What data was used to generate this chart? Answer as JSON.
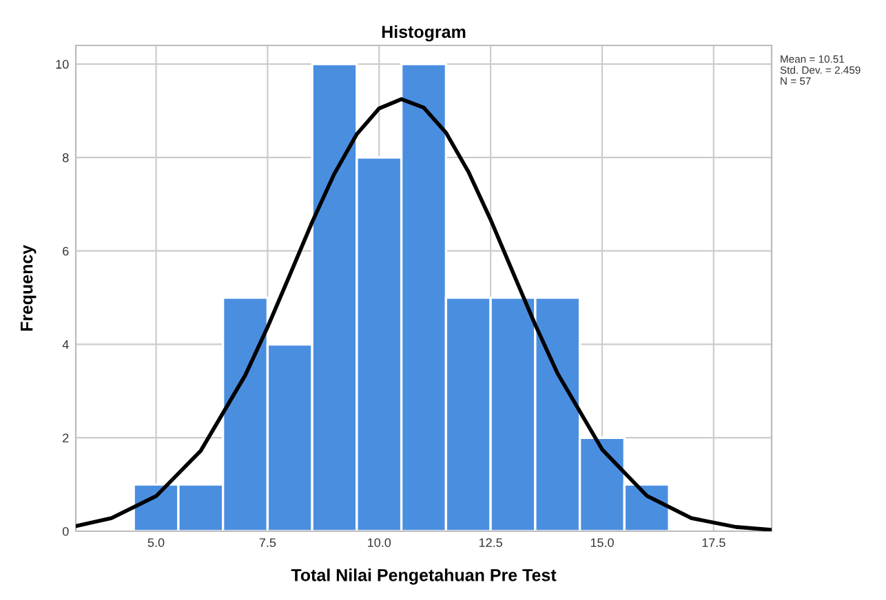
{
  "chart_data": {
    "type": "histogram",
    "title": "Histogram",
    "xlabel": "Total Nilai Pengetahuan Pre Test",
    "ylabel": "Frequency",
    "bins": [
      4.5,
      5.5,
      6.5,
      7.5,
      8.5,
      9.5,
      10.5,
      11.5,
      12.5,
      13.5,
      14.5,
      15.5,
      16.5
    ],
    "values": [
      1,
      1,
      5,
      4,
      10,
      8,
      10,
      5,
      5,
      5,
      2,
      1
    ],
    "color": "#4a8ee0",
    "series": [
      {
        "type": "line",
        "color": "#000000",
        "x": [
          3.2,
          4,
          5,
          6,
          7,
          7.5,
          8,
          8.5,
          9,
          9.5,
          10,
          10.5,
          11,
          11.5,
          12,
          12.5,
          13,
          13.5,
          14,
          15,
          16,
          17,
          18,
          18.8
        ],
        "values": [
          0.11,
          0.28,
          0.75,
          1.72,
          3.34,
          4.37,
          5.49,
          6.62,
          7.66,
          8.5,
          9.05,
          9.25,
          9.07,
          8.53,
          7.7,
          6.67,
          5.54,
          4.42,
          3.38,
          1.75,
          0.76,
          0.28,
          0.09,
          0.03
        ]
      }
    ],
    "xlim": [
      3.2,
      18.8
    ],
    "xticks": [
      {
        "value": 5,
        "label": "5.0"
      },
      {
        "value": 7.5,
        "label": "7.5"
      },
      {
        "value": 10,
        "label": "10.0"
      },
      {
        "value": 12.5,
        "label": "12.5"
      },
      {
        "value": 15,
        "label": "15.0"
      },
      {
        "value": 17.5,
        "label": "17.5"
      }
    ],
    "ylim": [
      0,
      10.4
    ],
    "yticks": [
      0,
      2,
      4,
      6,
      8,
      10
    ],
    "grid": true,
    "annotations": [
      "Mean = 10.51",
      "Std. Dev. = 2.459",
      "N = 57"
    ]
  }
}
